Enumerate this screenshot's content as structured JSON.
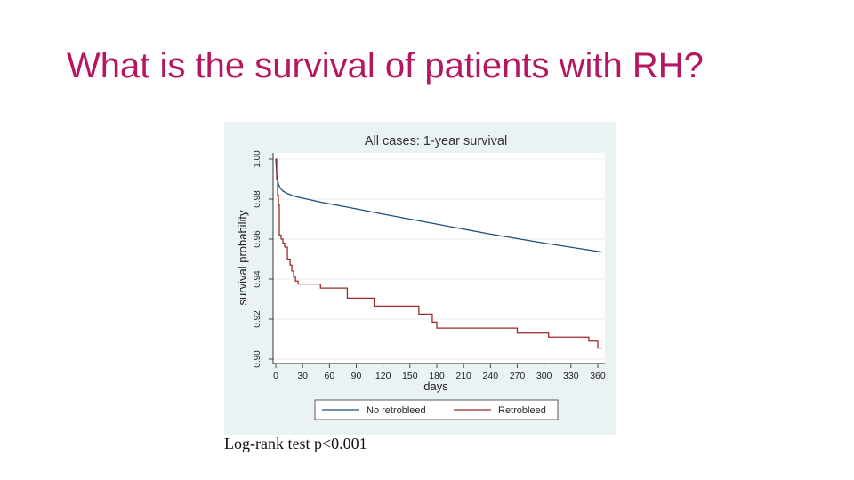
{
  "slide": {
    "title": "What is the survival of patients with RH?",
    "footnote": "Log-rank test p<0.001"
  },
  "colors": {
    "title": "#b5165f",
    "panel_bg": "#eaf2f3",
    "plot_bg": "#ffffff",
    "series_no_retrobleed": "#1f4e79",
    "series_retrobleed": "#9b2a2a"
  },
  "chart_data": {
    "type": "line",
    "title": "All cases: 1-year survival",
    "xlabel": "days",
    "ylabel": "survival probability",
    "xlim": [
      0,
      365
    ],
    "ylim": [
      0.9,
      1.0
    ],
    "xticks": [
      0,
      30,
      60,
      90,
      120,
      150,
      180,
      210,
      240,
      270,
      300,
      330,
      360
    ],
    "yticks": [
      0.9,
      0.92,
      0.94,
      0.96,
      0.98,
      1.0
    ],
    "ytick_labels": [
      "0.90",
      "0.92",
      "0.94",
      "0.96",
      "0.98",
      "1.00"
    ],
    "grid": true,
    "legend_position": "bottom",
    "series": [
      {
        "name": "No retrobleed",
        "step": false,
        "x": [
          0,
          1,
          2,
          3,
          5,
          8,
          12,
          20,
          30,
          50,
          80,
          120,
          180,
          240,
          300,
          365
        ],
        "y": [
          1.0,
          0.9925,
          0.9895,
          0.9875,
          0.9855,
          0.984,
          0.983,
          0.9815,
          0.9805,
          0.9785,
          0.976,
          0.9725,
          0.9675,
          0.9625,
          0.958,
          0.9535
        ]
      },
      {
        "name": "Retrobleed",
        "step": true,
        "x": [
          0,
          1,
          2,
          3,
          4,
          6,
          8,
          10,
          13,
          16,
          18,
          20,
          22,
          25,
          50,
          80,
          110,
          160,
          175,
          180,
          270,
          305,
          350,
          360,
          365
        ],
        "y": [
          1.0,
          0.99,
          0.982,
          0.977,
          0.962,
          0.96,
          0.958,
          0.956,
          0.95,
          0.947,
          0.944,
          0.941,
          0.939,
          0.9375,
          0.9355,
          0.9305,
          0.9265,
          0.9225,
          0.9185,
          0.9155,
          0.913,
          0.911,
          0.909,
          0.9055,
          0.9055
        ]
      }
    ]
  }
}
